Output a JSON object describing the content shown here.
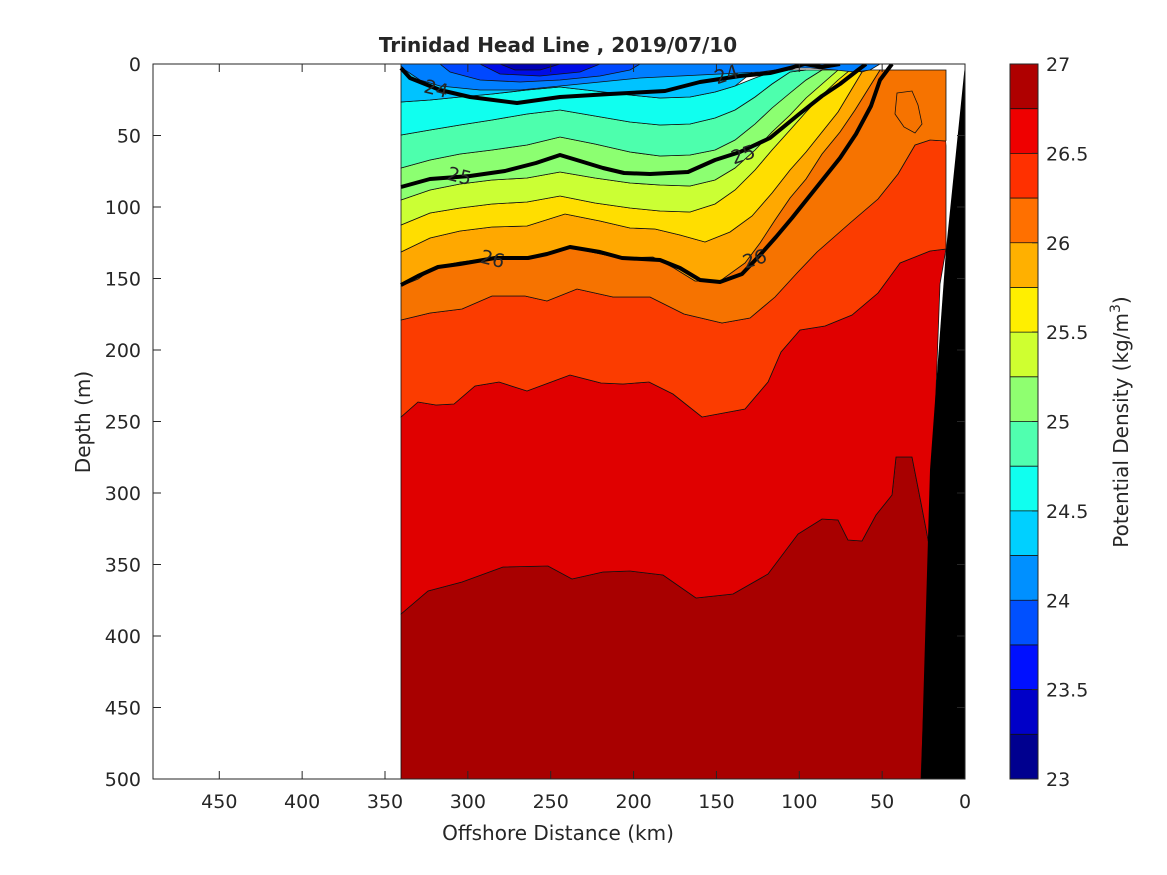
{
  "chart_data": {
    "type": "contour",
    "title": "Trinidad Head Line , 2019/07/10",
    "xlabel": "Offshore Distance (km)",
    "ylabel": "Depth (m)",
    "xlim": [
      490,
      0
    ],
    "ylim": [
      500,
      0
    ],
    "x_reversed": true,
    "y_reversed": true,
    "xticks": [
      450,
      400,
      350,
      300,
      250,
      200,
      150,
      100,
      50,
      0
    ],
    "yticks": [
      0,
      50,
      100,
      150,
      200,
      250,
      300,
      350,
      400,
      450,
      500
    ],
    "colorbar": {
      "label": "Potential Density (kg/m",
      "label_superscript": "3",
      "label_close": ")",
      "range": [
        23,
        27
      ],
      "step": 0.25,
      "ticks": [
        23,
        23.5,
        24,
        24.5,
        25,
        25.5,
        26,
        26.5,
        27
      ],
      "colormap": "jet"
    },
    "contour_labels": [
      {
        "value": "24",
        "x": 319,
        "y": 17
      },
      {
        "value": "24",
        "x": 144,
        "y": 7
      },
      {
        "value": "25",
        "x": 305,
        "y": 78
      },
      {
        "value": "25",
        "x": 134,
        "y": 63
      },
      {
        "value": "26",
        "x": 285,
        "y": 136
      },
      {
        "value": "26",
        "x": 127,
        "y": 136
      }
    ],
    "data_extent_km": [
      340,
      10
    ],
    "bottom_topography": "black wedge at nearshore edge",
    "grid": false
  }
}
